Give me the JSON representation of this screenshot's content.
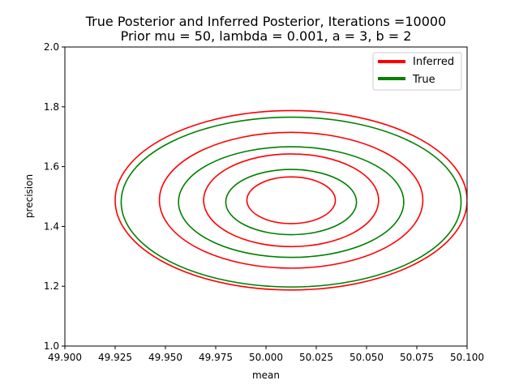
{
  "chart_data": {
    "type": "line",
    "title": "True Posterior and Inferred Posterior, Iterations =10000",
    "subtitle": "Prior mu = 50, lambda = 0.001, a = 3, b = 2",
    "xlabel": "mean",
    "ylabel": "precision",
    "xlim": [
      49.9,
      50.1
    ],
    "ylim": [
      1.0,
      2.0
    ],
    "xticks": [
      "49.900",
      "49.925",
      "49.950",
      "49.975",
      "50.000",
      "50.025",
      "50.050",
      "50.075",
      "50.100"
    ],
    "yticks": [
      "1.0",
      "1.2",
      "1.4",
      "1.6",
      "1.8",
      "2.0"
    ],
    "grid": false,
    "legend_position": "top-right",
    "series": [
      {
        "name": "Inferred",
        "color": "#ff0000",
        "contours": [
          {
            "cx": 50.0125,
            "cy": 1.4875,
            "rx": 0.022,
            "ry": 0.078
          },
          {
            "cx": 50.0125,
            "cy": 1.4875,
            "rx": 0.0435,
            "ry": 0.155
          },
          {
            "cx": 50.0125,
            "cy": 1.4875,
            "rx": 0.0655,
            "ry": 0.227
          },
          {
            "cx": 50.0125,
            "cy": 1.4875,
            "rx": 0.0875,
            "ry": 0.3
          }
        ]
      },
      {
        "name": "True",
        "color": "#008000",
        "contours": [
          {
            "cx": 50.0125,
            "cy": 1.4815,
            "rx": 0.0325,
            "ry": 0.109
          },
          {
            "cx": 50.0125,
            "cy": 1.4815,
            "rx": 0.056,
            "ry": 0.185
          },
          {
            "cx": 50.0125,
            "cy": 1.4815,
            "rx": 0.0845,
            "ry": 0.284
          }
        ]
      }
    ]
  }
}
